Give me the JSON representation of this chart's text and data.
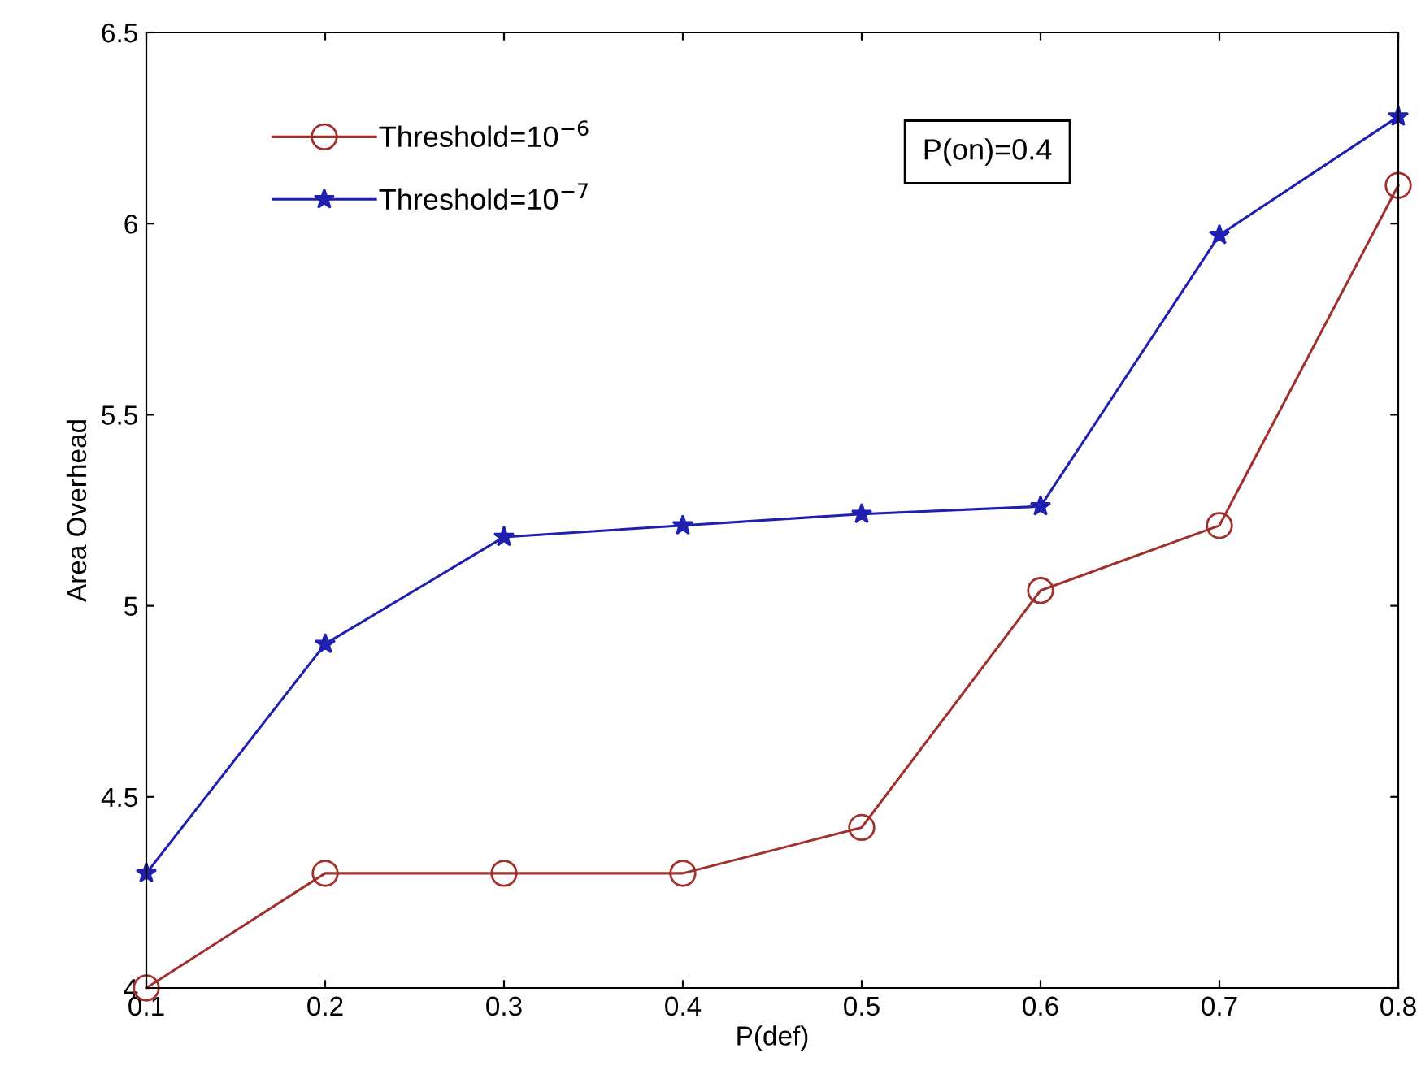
{
  "chart_data": {
    "type": "line",
    "xlabel": "P(def)",
    "ylabel": "Area Overhead",
    "x": [
      0.1,
      0.2,
      0.3,
      0.4,
      0.5,
      0.6,
      0.7,
      0.8
    ],
    "series": [
      {
        "name": "Threshold=10$^{−6}$",
        "color": "#a0302c",
        "marker": "circle",
        "values": [
          4.0,
          4.3,
          4.3,
          4.3,
          4.42,
          5.04,
          5.21,
          6.1
        ]
      },
      {
        "name": "Threshold=10$^{−7}$",
        "color": "#2020b0",
        "marker": "star",
        "values": [
          4.3,
          4.9,
          5.18,
          5.21,
          5.24,
          5.26,
          5.97,
          6.28
        ]
      }
    ],
    "xlim": [
      0.1,
      0.8
    ],
    "xticks": [
      0.1,
      0.2,
      0.3,
      0.4,
      0.5,
      0.6,
      0.7,
      0.8
    ],
    "ylim": [
      4,
      6.5
    ],
    "yticks": [
      4,
      4.5,
      5,
      5.5,
      6,
      6.5
    ],
    "annotations": [
      "P(on)=0.4"
    ],
    "grid": false,
    "legend": "top left"
  }
}
